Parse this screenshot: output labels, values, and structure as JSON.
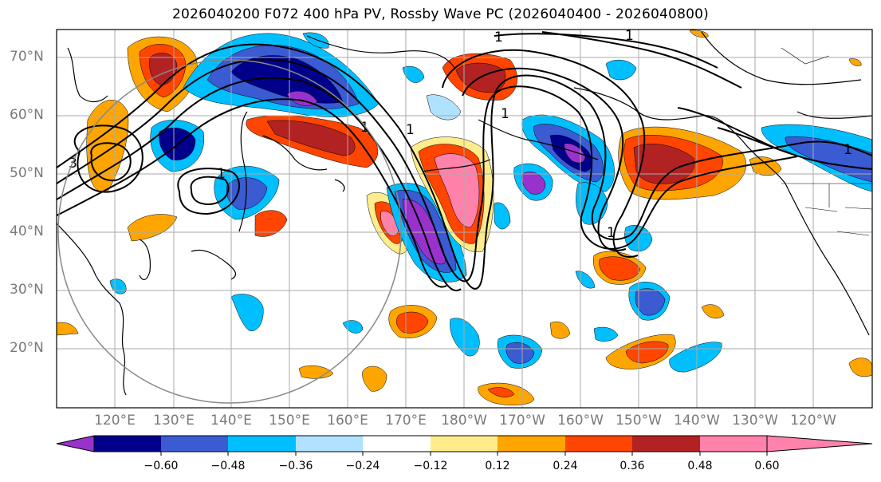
{
  "title": "2026040200 F072 400 hPa PV, Rossby Wave PC (2026040400 - 2026040800)",
  "latitude_labels": [
    "70°N",
    "60°N",
    "50°N",
    "40°N",
    "30°N",
    "20°N"
  ],
  "longitude_labels": [
    "120°E",
    "130°E",
    "140°E",
    "150°E",
    "160°E",
    "170°E",
    "180°W",
    "170°W",
    "160°W",
    "150°W",
    "140°W",
    "130°W",
    "120°W"
  ],
  "contour_labels": [
    "1",
    "1",
    "1",
    "1",
    "1",
    "1",
    "1",
    "1",
    "3"
  ],
  "colorbar": {
    "ticks": [
      "−0.60",
      "−0.48",
      "−0.36",
      "−0.24",
      "−0.12",
      "0.12",
      "0.24",
      "0.36",
      "0.48",
      "0.60"
    ],
    "colors": [
      "#9932cc",
      "#00008b",
      "#3a5bd2",
      "#00bfff",
      "#b0e2ff",
      "#ffffff",
      "#ffec8b",
      "#ffa500",
      "#ff4500",
      "#b22222",
      "#ff82ab"
    ]
  }
}
